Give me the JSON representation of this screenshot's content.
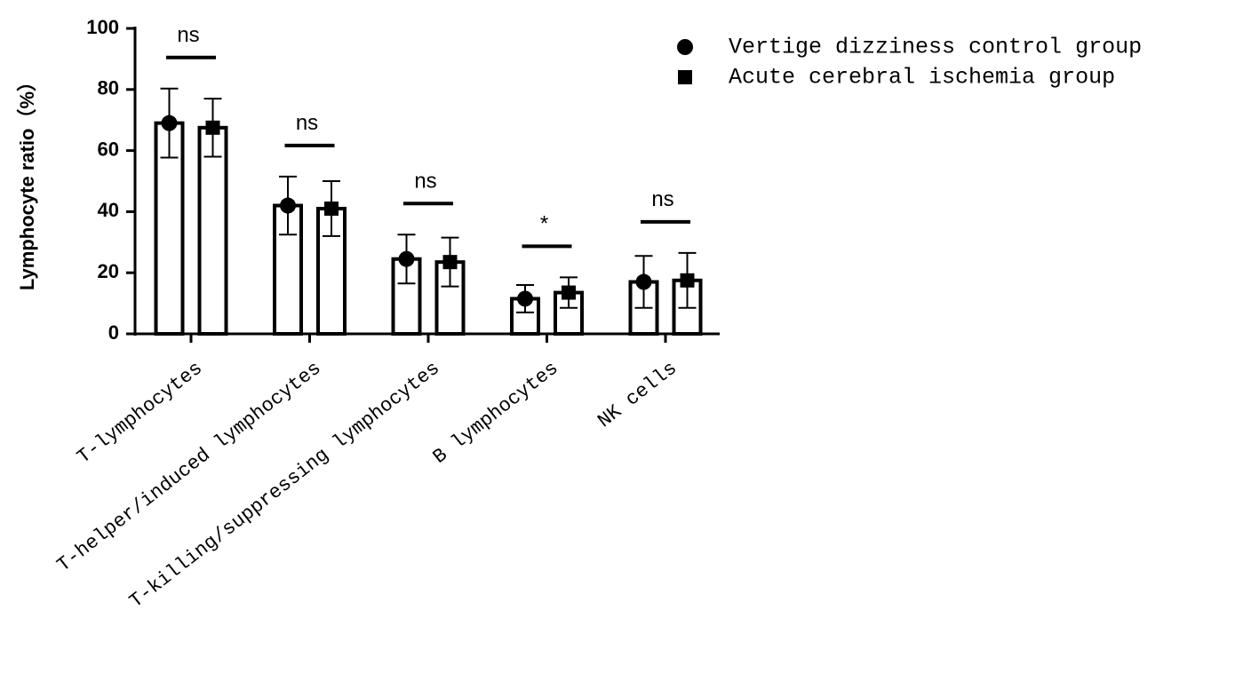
{
  "chart_data": {
    "type": "bar",
    "y_label": "Lymphocyte ratio（%）",
    "categories": [
      "T-lymphocytes",
      "T-helper/induced lymphocytes",
      "T-killing/suppressing lymphocytes",
      "B lymphocytes",
      "NK cells"
    ],
    "series": [
      {
        "name": "Vertige dizziness control group",
        "color": "#000000",
        "marker": "circle",
        "values": [
          69,
          42,
          24.5,
          11.5,
          17
        ],
        "errors": [
          11.3,
          9.5,
          8,
          4.5,
          8.5
        ]
      },
      {
        "name": "Acute cerebral ischemia group",
        "color": "#000000",
        "marker": "square",
        "values": [
          67.5,
          41,
          23.5,
          13.5,
          17.5
        ],
        "errors": [
          9.5,
          9,
          8,
          5,
          9
        ]
      }
    ],
    "annotations": [
      "ns",
      "ns",
      "ns",
      "*",
      "ns"
    ],
    "ylim": [
      0,
      100
    ],
    "yticks": [
      0,
      20,
      40,
      60,
      80,
      100
    ],
    "legend": "upper right"
  }
}
